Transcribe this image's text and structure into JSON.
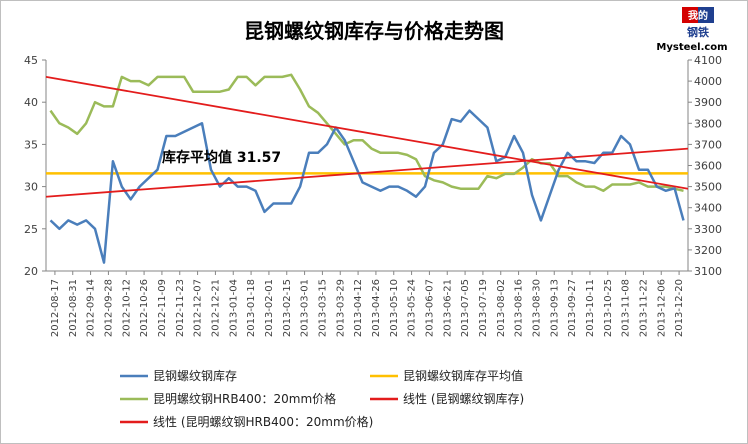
{
  "logo": {
    "line1": "我的",
    "line2": "钢铁",
    "brand": "Mysteel.com"
  },
  "chart_data": {
    "type": "line",
    "title": "昆钢螺纹钢库存与价格走势图",
    "left_axis": {
      "min": 20,
      "max": 45,
      "step": 5,
      "ticks": [
        "20",
        "25",
        "30",
        "35",
        "40",
        "45"
      ]
    },
    "right_axis": {
      "min": 3100,
      "max": 4100,
      "step": 100,
      "ticks": [
        "3100",
        "3200",
        "3300",
        "3400",
        "3500",
        "3600",
        "3700",
        "3800",
        "3900",
        "4000",
        "4100"
      ]
    },
    "x_labels": [
      "2012-08-17",
      "2012-08-31",
      "2012-09-14",
      "2012-09-28",
      "2012-10-12",
      "2012-10-26",
      "2012-11-09",
      "2012-11-23",
      "2012-12-07",
      "2012-12-21",
      "2013-01-04",
      "2013-01-18",
      "2013-02-01",
      "2013-02-15",
      "2013-03-01",
      "2013-03-15",
      "2013-03-29",
      "2013-04-12",
      "2013-04-26",
      "2013-05-10",
      "2013-05-24",
      "2013-06-07",
      "2013-06-21",
      "2013-07-05",
      "2013-07-19",
      "2013-08-02",
      "2013-08-16",
      "2013-08-30",
      "2013-09-13",
      "2013-09-27",
      "2013-10-11",
      "2013-10-25",
      "2013-11-08",
      "2013-11-22",
      "2013-12-06",
      "2013-12-20"
    ],
    "grid": false,
    "legend_position": "bottom",
    "average_annotation": "库存平均值 31.57",
    "series": [
      {
        "name": "昆钢螺纹钢库存",
        "axis": "left",
        "color": "#4a7ebb",
        "values": [
          26,
          25,
          26,
          25.5,
          26,
          25,
          21,
          33,
          30,
          28.5,
          30,
          31,
          32,
          36,
          36,
          36.5,
          37,
          37.5,
          32,
          30,
          31,
          30,
          30,
          29.5,
          27,
          28,
          28,
          28,
          30,
          34,
          34,
          35,
          37,
          35.5,
          33,
          30.5,
          30,
          29.5,
          30,
          30,
          29.5,
          28.8,
          30,
          34,
          35,
          38,
          37.7,
          39,
          38,
          37,
          33,
          33.5,
          36,
          34,
          29,
          26,
          29,
          32,
          34,
          33,
          33,
          32.8,
          34,
          34,
          36,
          35,
          32,
          32,
          30,
          29.5,
          29.8,
          26
        ]
      },
      {
        "name": "昆钢螺纹钢库存平均值",
        "axis": "left",
        "color": "#ffc000",
        "values": [
          31.57
        ]
      },
      {
        "name": "昆明螺纹钢HRB400：20mm价格",
        "axis": "right",
        "color": "#9bbb59",
        "values": [
          3860,
          3800,
          3780,
          3750,
          3800,
          3900,
          3880,
          3880,
          4020,
          4000,
          4000,
          3980,
          4020,
          4020,
          4020,
          4020,
          3950,
          3950,
          3950,
          3950,
          3960,
          4020,
          4020,
          3980,
          4020,
          4020,
          4020,
          4030,
          3960,
          3880,
          3850,
          3800,
          3750,
          3700,
          3720,
          3720,
          3680,
          3660,
          3660,
          3660,
          3650,
          3630,
          3550,
          3530,
          3520,
          3500,
          3490,
          3490,
          3490,
          3550,
          3540,
          3560,
          3560,
          3590,
          3630,
          3610,
          3610,
          3550,
          3550,
          3520,
          3500,
          3500,
          3480,
          3510,
          3510,
          3510,
          3520,
          3500,
          3500,
          3500,
          3490,
          3480
        ]
      },
      {
        "name": "线性 (昆钢螺纹钢库存)",
        "axis": "left",
        "color": "#e31c1c",
        "trend": [
          28.8,
          34.5
        ]
      },
      {
        "name": "线性 (昆明螺纹钢HRB400：20mm价格)",
        "axis": "right",
        "color": "#e31c1c",
        "trend": [
          4020,
          3490
        ]
      }
    ]
  }
}
